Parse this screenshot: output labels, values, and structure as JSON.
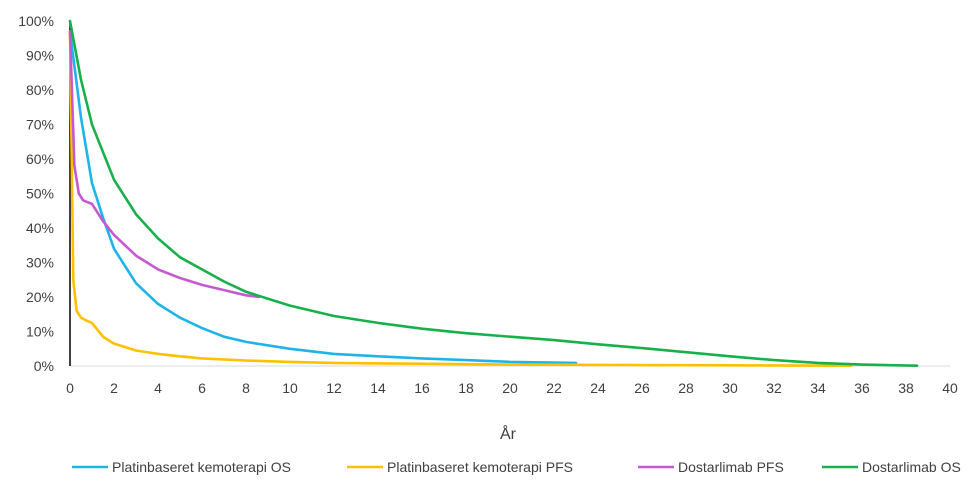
{
  "chart_data": {
    "type": "line",
    "title": "",
    "xlabel": "År",
    "ylabel": "",
    "xlim": [
      0,
      40
    ],
    "ylim": [
      0,
      100
    ],
    "x_ticks": [
      0,
      2,
      4,
      6,
      8,
      10,
      12,
      14,
      16,
      18,
      20,
      22,
      24,
      26,
      28,
      30,
      32,
      34,
      36,
      38,
      40
    ],
    "y_ticks": [
      "0%",
      "10%",
      "20%",
      "30%",
      "40%",
      "50%",
      "60%",
      "70%",
      "80%",
      "90%",
      "100%"
    ],
    "grid": false,
    "legend_position": "bottom",
    "series": [
      {
        "name": "Platinbaseret kemoterapi OS",
        "color": "#1fb4e8",
        "x": [
          0,
          0.5,
          1,
          1.5,
          2,
          3,
          4,
          5,
          6,
          7,
          8,
          10,
          12,
          14,
          16,
          18,
          20,
          23
        ],
        "y": [
          97,
          72,
          53,
          43,
          34,
          24,
          18,
          14,
          11,
          8.5,
          7,
          5,
          3.5,
          2.8,
          2.2,
          1.7,
          1.2,
          0.9
        ]
      },
      {
        "name": "Platinbaseret kemoterapi PFS",
        "color": "#ffc000",
        "x": [
          0,
          0.15,
          0.3,
          0.5,
          0.8,
          1,
          1.5,
          2,
          3,
          4,
          5,
          6,
          8,
          10,
          12,
          15,
          20,
          25,
          30,
          35.5
        ],
        "y": [
          97,
          25,
          16,
          14,
          13,
          12.5,
          8.5,
          6.5,
          4.5,
          3.5,
          2.8,
          2.2,
          1.6,
          1.2,
          0.9,
          0.7,
          0.4,
          0.3,
          0.2,
          0.1
        ]
      },
      {
        "name": "Dostarlimab PFS",
        "color": "#c55ad0",
        "x": [
          0,
          0.2,
          0.4,
          0.6,
          1,
          1.5,
          2,
          3,
          4,
          5,
          6,
          7,
          8,
          8.6
        ],
        "y": [
          97,
          58,
          50,
          48,
          47,
          42,
          38,
          32,
          28,
          25.5,
          23.5,
          22,
          20.5,
          20
        ]
      },
      {
        "name": "Dostarlimab OS",
        "color": "#18b04a",
        "x": [
          0,
          0.5,
          1,
          2,
          3,
          4,
          5,
          6,
          7,
          8,
          9,
          10,
          12,
          14,
          16,
          18,
          20,
          22,
          24,
          26,
          28,
          30,
          32,
          34,
          36,
          38.5
        ],
        "y": [
          100,
          83,
          70,
          54,
          44,
          37,
          31.5,
          28,
          24.5,
          21.5,
          19.5,
          17.5,
          14.5,
          12.5,
          10.8,
          9.5,
          8.5,
          7.5,
          6.3,
          5.2,
          4,
          2.8,
          1.7,
          0.9,
          0.4,
          0.1
        ]
      }
    ]
  }
}
